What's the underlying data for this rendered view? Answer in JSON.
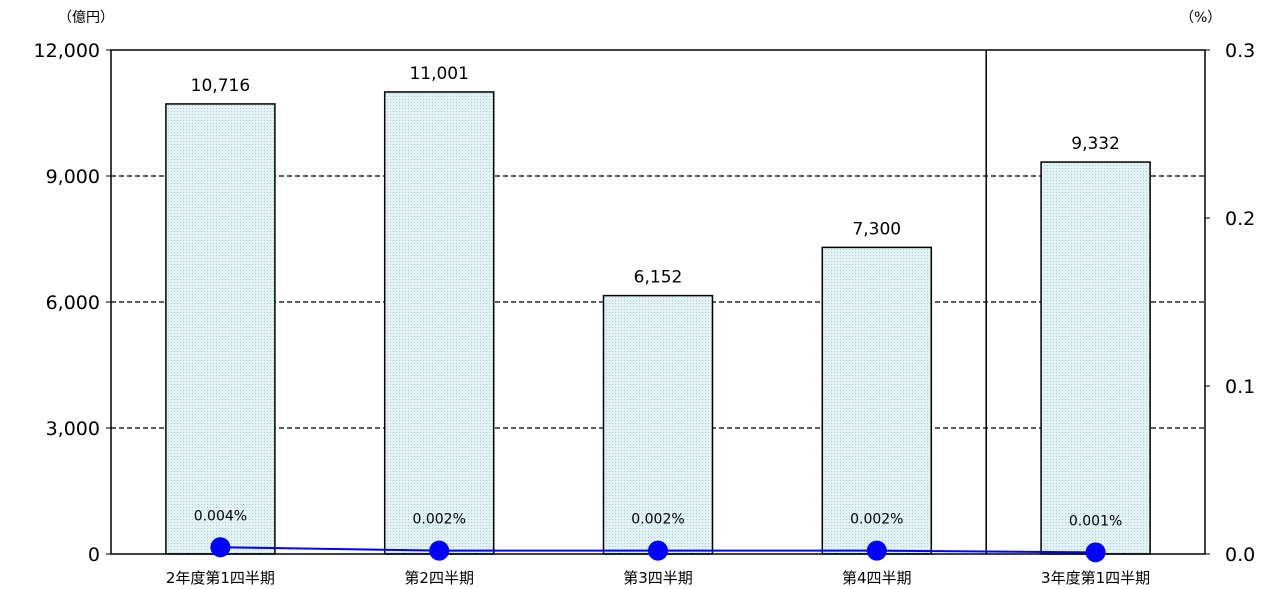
{
  "chart_data": {
    "type": "bar",
    "categories": [
      "2年度第1四半期",
      "第2四半期",
      "第3四半期",
      "第4四半期",
      "3年度第1四半期"
    ],
    "series": [
      {
        "values": [
          10716,
          11001,
          6152,
          7300,
          9332
        ],
        "labels": [
          "10,716",
          "11,001",
          "6,152",
          "7,300",
          "9,332"
        ],
        "axis": "left",
        "kind": "bar",
        "color": "#d9eef2"
      },
      {
        "values": [
          0.004,
          0.002,
          0.002,
          0.002,
          0.001
        ],
        "labels": [
          "0.004%",
          "0.002%",
          "0.002%",
          "0.002%",
          "0.001%"
        ],
        "axis": "right",
        "kind": "line",
        "color": "#0000ff"
      }
    ],
    "y_left": {
      "unit": "（億円）",
      "ylim": [
        0,
        12000
      ],
      "ticks": [
        "0",
        "3,000",
        "6,000",
        "9,000",
        "12,000"
      ]
    },
    "y_right": {
      "unit": "（%）",
      "ylim": [
        0,
        0.3
      ],
      "ticks": [
        "0.0",
        "0.1",
        "0.2",
        "0.3"
      ]
    },
    "grid": "dashed-horizontal",
    "divider_before_category": 4,
    "legend": "none"
  }
}
